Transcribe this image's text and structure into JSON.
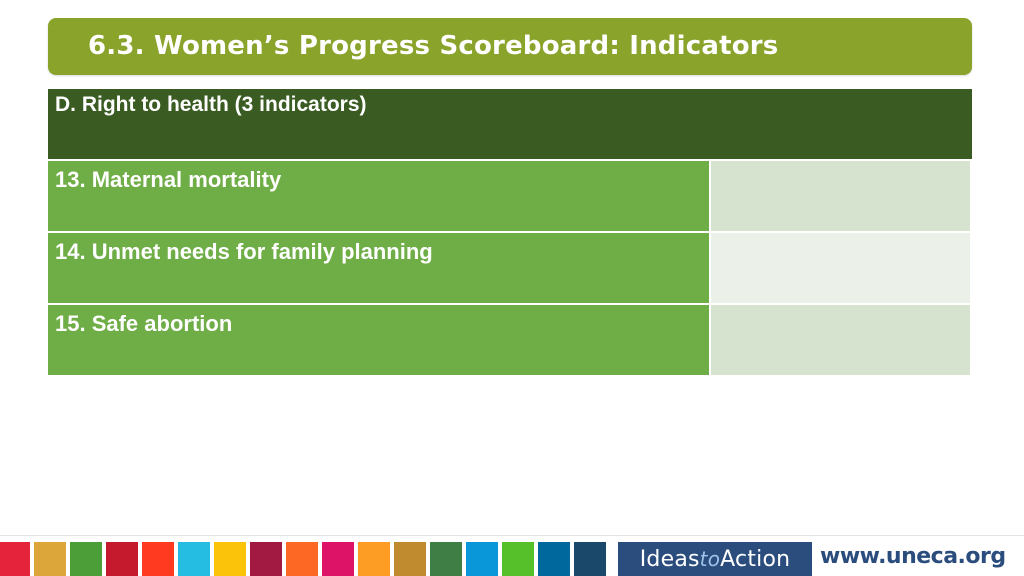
{
  "title": "6.3. Women’s Progress Scoreboard: Indicators",
  "table": {
    "header": "D. Right to health (3 indicators)",
    "rows": [
      {
        "label": "13. Maternal mortality",
        "value": ""
      },
      {
        "label": "14. Unmet needs for family planning",
        "value": ""
      },
      {
        "label": "15. Safe abortion",
        "value": ""
      }
    ]
  },
  "footer": {
    "sdg_colors": [
      "#e5243b",
      "#dda63a",
      "#4c9f38",
      "#c5192d",
      "#ff3a21",
      "#26bde2",
      "#fcc30b",
      "#a21942",
      "#fd6925",
      "#dd1367",
      "#fd9d24",
      "#bf8b2e",
      "#3f7e44",
      "#0a97d9",
      "#56c02b",
      "#00689d",
      "#19486a"
    ],
    "brand_ideas": "Ideas",
    "brand_to": "to",
    "brand_action": "Action",
    "url": "www.uneca.org"
  }
}
